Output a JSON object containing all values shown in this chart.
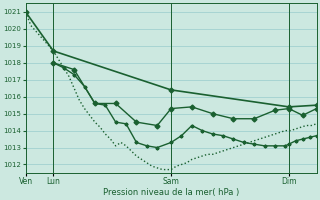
{
  "title": "",
  "xlabel": "Pression niveau de la mer( hPa )",
  "background_color": "#cce8e0",
  "grid_color": "#99cccc",
  "line_color": "#1a6030",
  "ylim": [
    1011.5,
    1021.5
  ],
  "yticks": [
    1012,
    1013,
    1014,
    1015,
    1016,
    1017,
    1018,
    1019,
    1020,
    1021
  ],
  "xlim": [
    0,
    168
  ],
  "x_tick_positions": [
    0,
    16,
    84,
    152
  ],
  "x_tick_labels": [
    "Ven",
    "Lun",
    "Sam",
    "Dim"
  ],
  "vlines": [
    16,
    84,
    152
  ],
  "series_dotted_x": [
    0,
    3,
    16,
    19,
    22,
    25,
    28,
    31,
    34,
    37,
    40,
    43,
    46,
    49,
    52,
    55,
    58,
    61,
    64,
    67,
    70,
    73,
    76,
    79,
    84,
    87,
    90,
    93,
    96,
    99,
    102,
    105,
    108,
    111,
    114,
    117,
    120,
    123,
    126,
    129,
    132,
    135,
    138,
    141,
    144,
    147,
    150,
    153,
    156,
    159,
    162,
    165,
    168
  ],
  "series_dotted_y": [
    1021.0,
    1020.2,
    1018.7,
    1018.2,
    1017.7,
    1017.2,
    1016.5,
    1015.8,
    1015.3,
    1014.9,
    1014.5,
    1014.2,
    1013.8,
    1013.5,
    1013.1,
    1013.3,
    1013.1,
    1012.8,
    1012.5,
    1012.3,
    1012.1,
    1011.9,
    1011.8,
    1011.7,
    1011.7,
    1011.9,
    1012.0,
    1012.1,
    1012.3,
    1012.4,
    1012.5,
    1012.6,
    1012.6,
    1012.7,
    1012.8,
    1012.9,
    1013.0,
    1013.1,
    1013.2,
    1013.3,
    1013.4,
    1013.5,
    1013.6,
    1013.7,
    1013.8,
    1013.9,
    1014.0,
    1014.0,
    1014.1,
    1014.2,
    1014.3,
    1014.3,
    1014.4
  ],
  "series_smooth_x": [
    0,
    16,
    84,
    152,
    168
  ],
  "series_smooth_y": [
    1021.0,
    1018.7,
    1016.4,
    1015.4,
    1015.5
  ],
  "series_markers_x": [
    16,
    22,
    28,
    34,
    40,
    46,
    52,
    58,
    64,
    70,
    76,
    84,
    90,
    96,
    102,
    108,
    114,
    120,
    126,
    132,
    138,
    144,
    150,
    152,
    156,
    160,
    164,
    168
  ],
  "series_markers_y": [
    1018.0,
    1017.7,
    1017.3,
    1016.6,
    1015.6,
    1015.5,
    1014.5,
    1014.4,
    1013.3,
    1013.1,
    1013.0,
    1013.3,
    1013.7,
    1014.3,
    1014.0,
    1013.8,
    1013.7,
    1013.5,
    1013.3,
    1013.2,
    1013.1,
    1013.1,
    1013.1,
    1013.2,
    1013.4,
    1013.5,
    1013.6,
    1013.7
  ],
  "series_line2_x": [
    16,
    28,
    40,
    52,
    64,
    76,
    84,
    96,
    108,
    120,
    132,
    144,
    152,
    160,
    168
  ],
  "series_line2_y": [
    1018.0,
    1017.6,
    1015.6,
    1015.6,
    1014.5,
    1014.3,
    1015.3,
    1015.4,
    1015.0,
    1014.7,
    1014.7,
    1015.2,
    1015.3,
    1014.9,
    1015.3
  ],
  "markersize": 2.5,
  "linewidth": 1.0
}
